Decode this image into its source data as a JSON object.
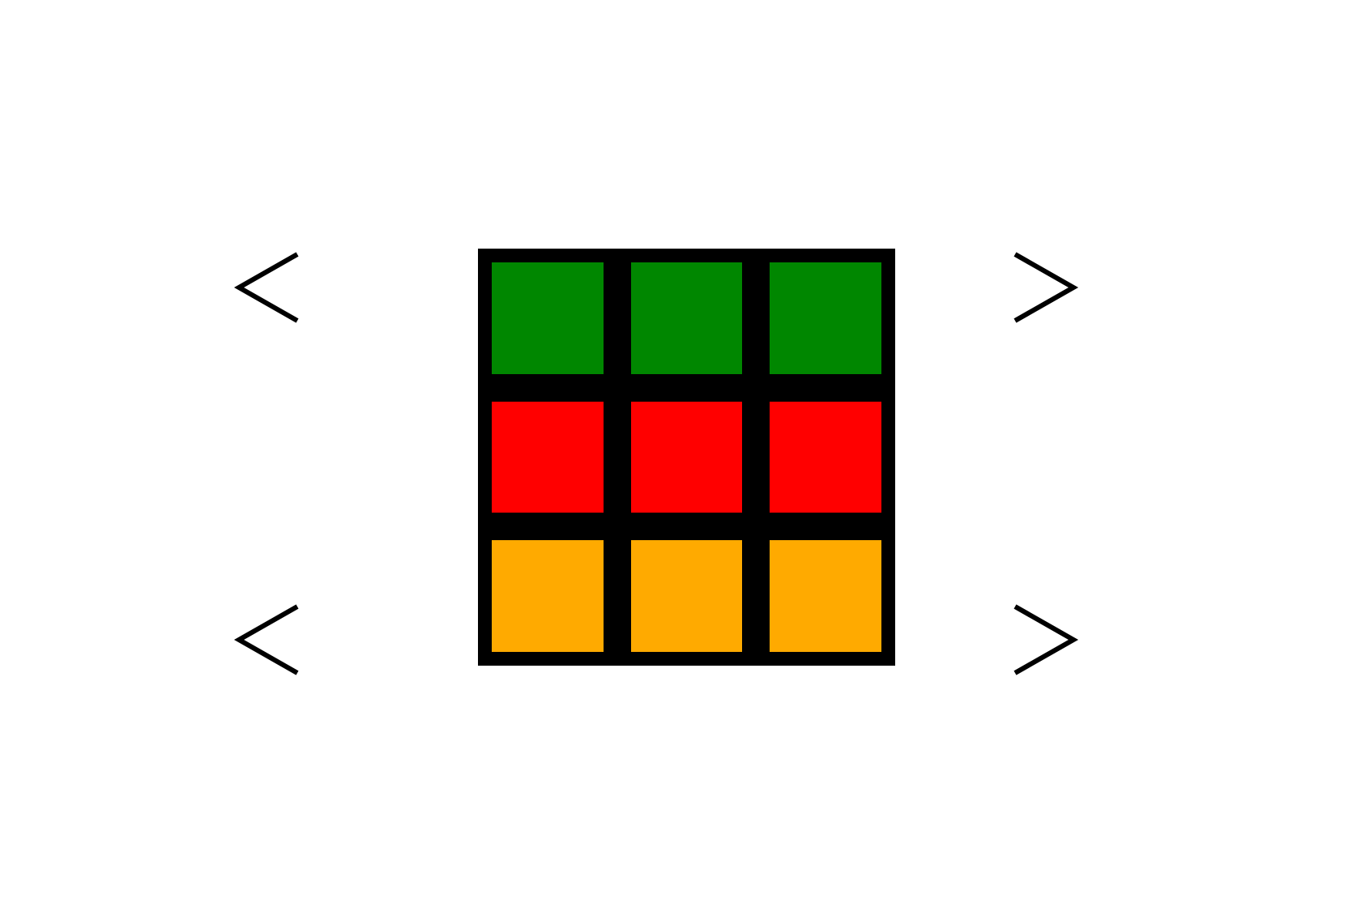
{
  "controls": {
    "row_top_left": {
      "icon": "chevron-left-icon"
    },
    "row_top_right": {
      "icon": "chevron-right-icon"
    },
    "row_bottom_left": {
      "icon": "chevron-left-icon"
    },
    "row_bottom_right": {
      "icon": "chevron-right-icon"
    }
  },
  "colors": {
    "green": "#008700",
    "red": "#ff0000",
    "orange": "#ffaa00",
    "border": "#000000"
  },
  "board": {
    "rows": [
      [
        "green",
        "green",
        "green"
      ],
      [
        "red",
        "red",
        "red"
      ],
      [
        "orange",
        "orange",
        "orange"
      ]
    ]
  }
}
